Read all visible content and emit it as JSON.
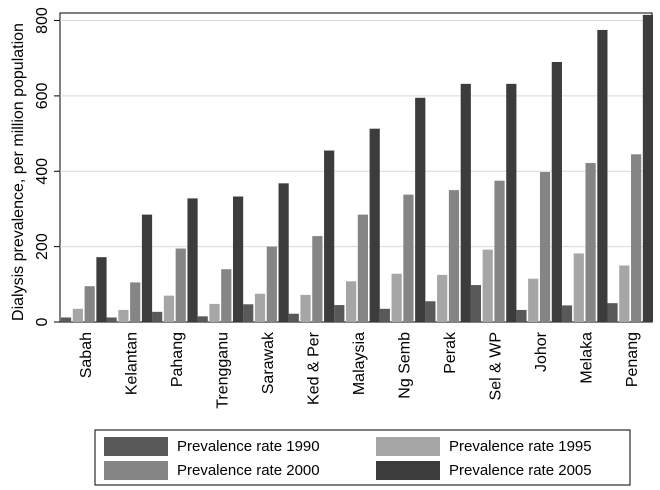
{
  "chart_data": {
    "type": "bar",
    "title": "",
    "xlabel": "",
    "ylabel": "Dialysis prevalence, per million population",
    "ylim": [
      0,
      820
    ],
    "yticks": [
      0,
      200,
      400,
      600,
      800
    ],
    "grid": "horizontal",
    "legend_position": "bottom",
    "categories": [
      "Sabah",
      "Kelantan",
      "Pahang",
      "Trengganu",
      "Sarawak",
      "Ked & Per",
      "Malaysia",
      "Ng Semb",
      "Perak",
      "Sel & WP",
      "Johor",
      "Melaka",
      "Penang"
    ],
    "series": [
      {
        "name": "Prevalence rate 1990",
        "color": "#595959",
        "values": [
          12,
          12,
          27,
          15,
          47,
          22,
          45,
          35,
          55,
          98,
          32,
          44,
          50
        ]
      },
      {
        "name": "Prevalence rate 1995",
        "color": "#a6a6a6",
        "values": [
          35,
          32,
          70,
          48,
          75,
          72,
          108,
          128,
          125,
          192,
          115,
          182,
          150
        ]
      },
      {
        "name": "Prevalence rate 2000",
        "color": "#858585",
        "values": [
          95,
          105,
          195,
          140,
          200,
          228,
          285,
          338,
          350,
          375,
          398,
          422,
          445
        ]
      },
      {
        "name": "Prevalence rate 2005",
        "color": "#3c3c3c",
        "values": [
          172,
          285,
          328,
          333,
          368,
          455,
          513,
          595,
          632,
          632,
          690,
          775,
          815
        ]
      }
    ]
  }
}
